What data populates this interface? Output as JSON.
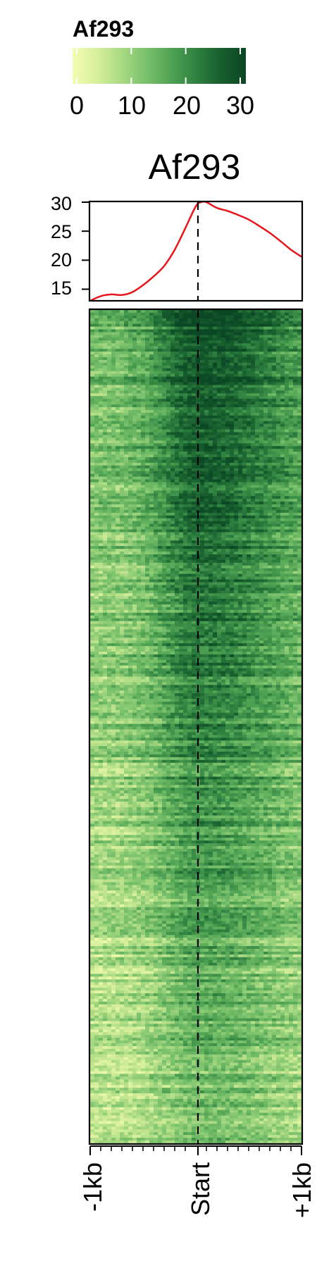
{
  "legend": {
    "title": "Af293",
    "ticks": [
      "0",
      "10",
      "20",
      "30"
    ],
    "range": [
      0,
      30
    ],
    "colors": [
      "#f4fcb2",
      "#d6ef9c",
      "#a8d982",
      "#78c06b",
      "#4fa253",
      "#2f8140",
      "#175e2e",
      "#0b4724"
    ]
  },
  "chart_data": [
    {
      "type": "line",
      "title": "Af293",
      "xlabel": "",
      "ylabel": "",
      "x_range": [
        "-1kb",
        "+1kb"
      ],
      "ylim": [
        13,
        30
      ],
      "y_ticks": [
        "15",
        "20",
        "25",
        "30"
      ],
      "series": [
        {
          "color": "#e8161b",
          "x": [
            -1000,
            -900,
            -800,
            -700,
            -600,
            -500,
            -400,
            -300,
            -200,
            -100,
            0,
            50,
            100,
            200,
            300,
            400,
            500,
            600,
            700,
            800,
            900,
            1000
          ],
          "y": [
            13.0,
            13.8,
            14.1,
            14.0,
            14.5,
            15.7,
            17.2,
            19.0,
            21.8,
            25.5,
            29.3,
            30.0,
            30.0,
            29.0,
            28.5,
            27.8,
            27.0,
            25.9,
            24.7,
            23.3,
            21.8,
            20.6
          ]
        }
      ],
      "reference_line": "Start"
    },
    {
      "type": "heatmap",
      "color_range": [
        0,
        30
      ],
      "x_ticks": [
        "-1kb",
        "Start",
        "+1kb"
      ],
      "rows_sorted": "descending",
      "reference_line": "Start"
    }
  ]
}
